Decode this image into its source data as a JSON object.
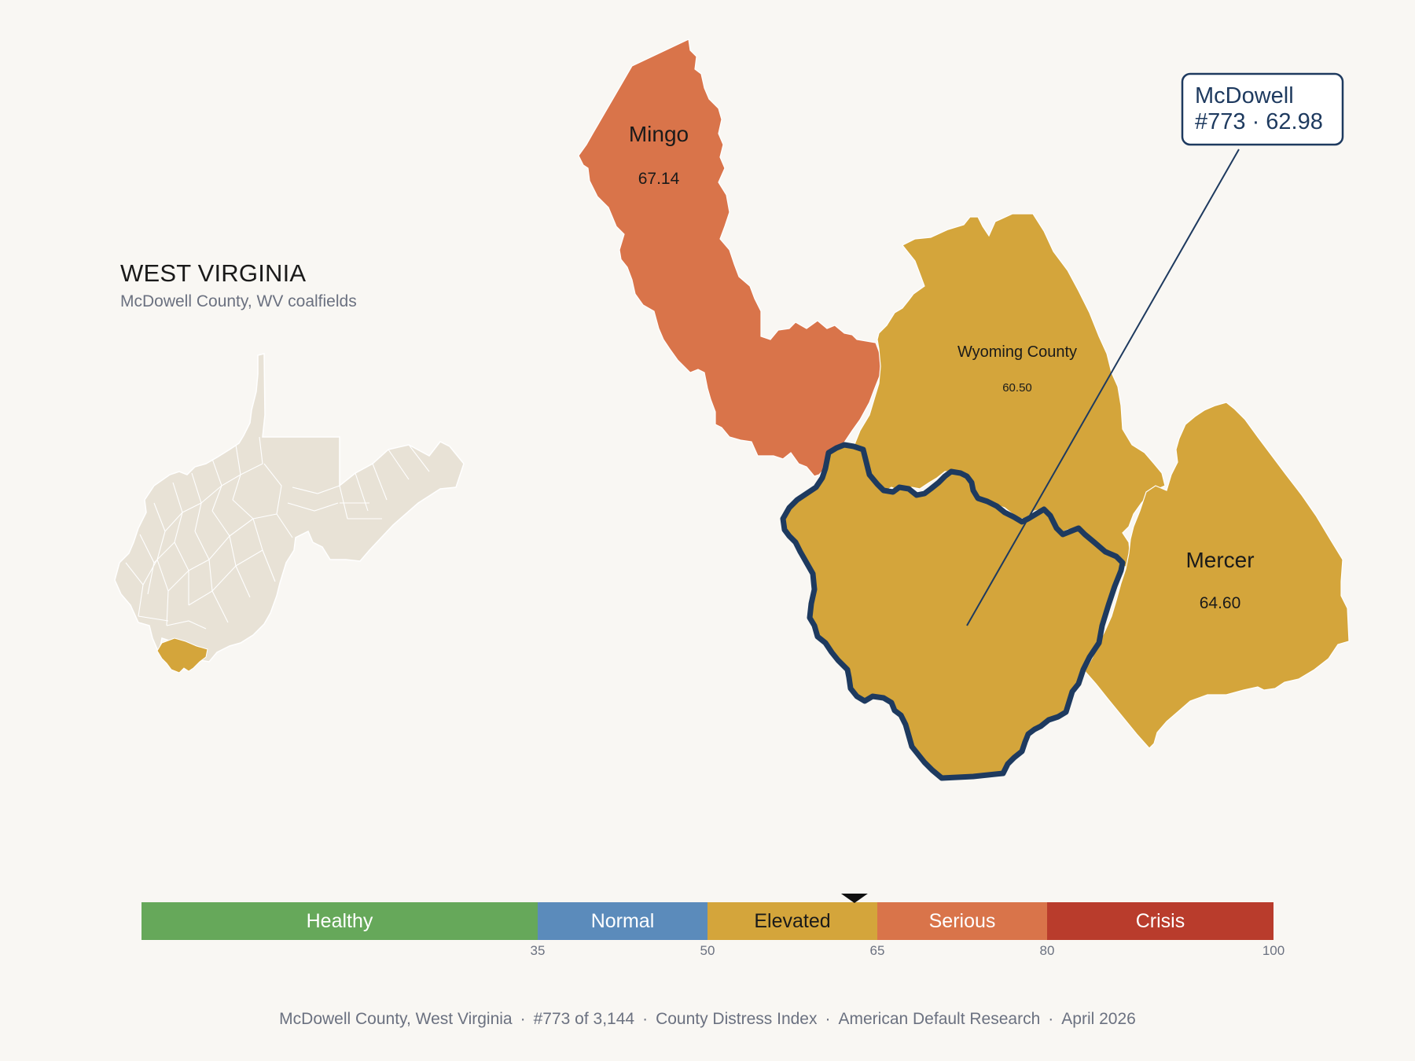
{
  "header": {
    "state_title": "WEST VIRGINIA",
    "state_subtitle": "McDowell County, WV coalfields"
  },
  "map": {
    "counties": [
      {
        "name": "Mingo",
        "value": "67.14",
        "tier": "Serious",
        "color": "#d9744a"
      },
      {
        "name": "Wyoming County",
        "value": "60.50",
        "tier": "Elevated",
        "color": "#d4a53b"
      },
      {
        "name": "Mercer",
        "value": "64.60",
        "tier": "Elevated",
        "color": "#d4a53b"
      },
      {
        "name": "McDowell",
        "value": "62.98",
        "tier": "Elevated",
        "color": "#d4a53b",
        "highlighted": true
      }
    ],
    "callout": {
      "name": "McDowell",
      "rank_value": "#773 · 62.98"
    },
    "highlight_outline_color": "#1e3a5f",
    "inset_base_color": "#e8e2d6",
    "inset_highlight_color": "#d4a53b"
  },
  "scale": {
    "min": 0,
    "max": 100,
    "marker_value": 62.98,
    "segments": [
      {
        "label": "Healthy",
        "from": 0,
        "to": 35,
        "color": "#66a85a",
        "text_color": "#ffffff"
      },
      {
        "label": "Normal",
        "from": 35,
        "to": 50,
        "color": "#5b8bbb",
        "text_color": "#ffffff"
      },
      {
        "label": "Elevated",
        "from": 50,
        "to": 65,
        "color": "#d4a53b",
        "text_color": "#1a1a1a"
      },
      {
        "label": "Serious",
        "from": 65,
        "to": 80,
        "color": "#d9744a",
        "text_color": "#ffffff"
      },
      {
        "label": "Crisis",
        "from": 80,
        "to": 100,
        "color": "#b93c2c",
        "text_color": "#ffffff"
      }
    ],
    "ticks": [
      "35",
      "50",
      "65",
      "80",
      "100"
    ]
  },
  "footer": {
    "county": "McDowell County, West Virginia",
    "rank": "#773 of 3,144",
    "index": "County Distress Index",
    "source": "American Default Research",
    "date": "April 2026",
    "separator": "·"
  }
}
